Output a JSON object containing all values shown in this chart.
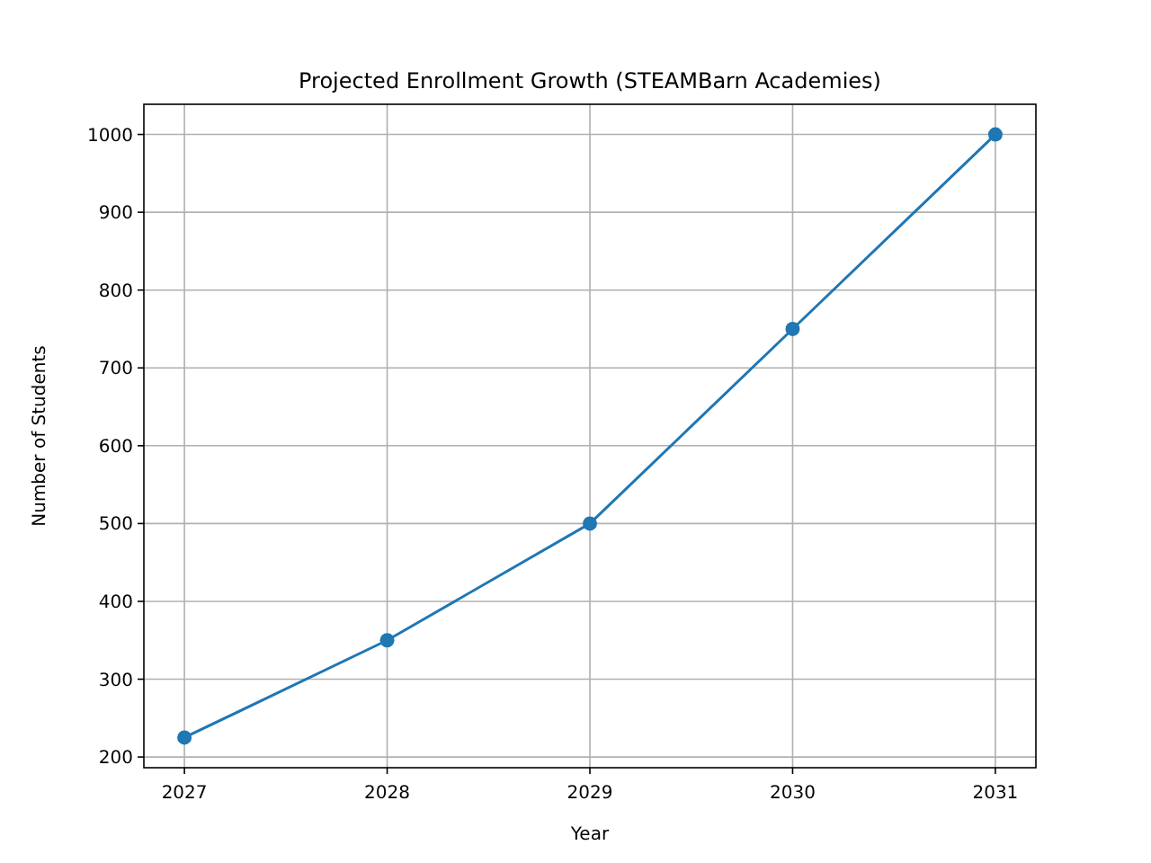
{
  "chart_data": {
    "type": "line",
    "title": "Projected Enrollment Growth (STEAMBarn Academies)",
    "xlabel": "Year",
    "ylabel": "Number of Students",
    "x": [
      2027,
      2028,
      2029,
      2030,
      2031
    ],
    "series": [
      {
        "color": "#1f77b4",
        "values": [
          225,
          350,
          500,
          750,
          1000
        ]
      }
    ],
    "xlim": [
      2026.8,
      2031.2
    ],
    "xticks": [
      2027,
      2028,
      2029,
      2030,
      2031
    ],
    "ylim": [
      186.25,
      1038.75
    ],
    "yticks": [
      200,
      300,
      400,
      500,
      600,
      700,
      800,
      900,
      1000
    ],
    "grid": true,
    "marker": "circle",
    "line_style": "solid"
  }
}
